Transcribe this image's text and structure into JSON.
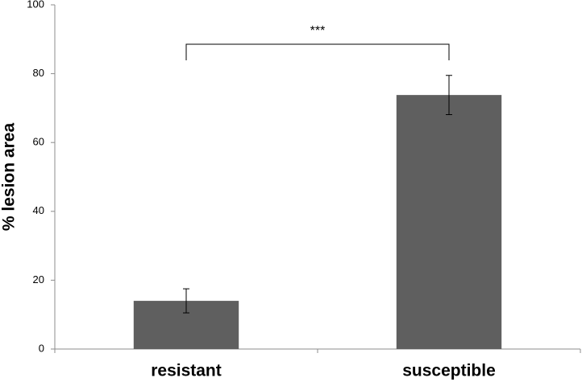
{
  "chart_data": {
    "type": "bar",
    "ylabel": "% lesion area",
    "categories": [
      "resistant",
      "susceptible"
    ],
    "values": [
      14,
      73.8
    ],
    "errors": [
      3.5,
      5.7
    ],
    "color": "#5f5f5f",
    "ylim": [
      0,
      100
    ],
    "yticks": [
      0,
      20,
      40,
      60,
      80,
      100
    ],
    "grid": false,
    "annotation": "***"
  }
}
